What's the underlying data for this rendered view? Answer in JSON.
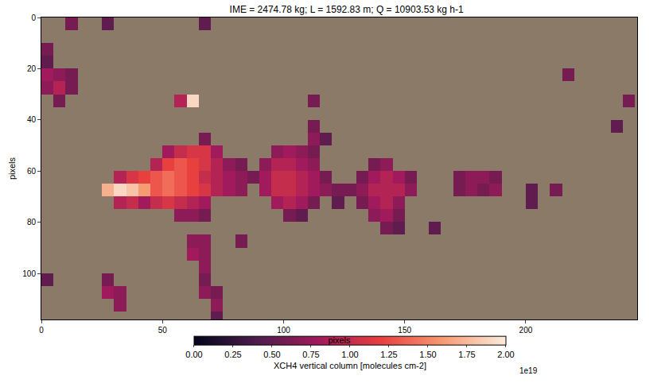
{
  "chart_data": {
    "type": "heatmap",
    "title": "IME = 2474.78 kg; L = 1592.83 m; Q = 10903.53 kg h-1",
    "xlabel": "pixels",
    "ylabel": "pixels",
    "xlim": [
      0,
      246
    ],
    "ylim": [
      118,
      0
    ],
    "xticks": [
      0,
      50,
      100,
      150,
      200
    ],
    "yticks": [
      0,
      20,
      40,
      60,
      80,
      100
    ],
    "grid": false,
    "x": [
      2.5,
      7.5,
      12.5,
      17.5,
      22.5,
      27.5,
      32.5,
      37.5,
      42.5,
      47.5,
      52.5,
      57.5,
      62.5,
      67.5,
      72.5,
      77.5,
      82.5,
      87.5,
      92.5,
      97.5,
      102.5,
      107.5,
      112.5,
      117.5,
      122.5,
      127.5,
      132.5,
      137.5,
      142.5,
      147.5,
      152.5,
      157.5,
      162.5,
      167.5,
      172.5,
      177.5,
      182.5,
      187.5,
      192.5,
      197.5,
      202.5,
      207.5,
      212.5,
      217.5,
      222.5,
      227.5,
      232.5,
      237.5,
      242.5
    ],
    "y": [
      2.5,
      7.5,
      12.5,
      17.5,
      22.5,
      27.5,
      32.5,
      37.5,
      42.5,
      47.5,
      52.5,
      57.5,
      62.5,
      67.5,
      72.5,
      77.5,
      82.5,
      87.5,
      92.5,
      97.5,
      102.5,
      107.5,
      112.5,
      117.5
    ],
    "cells": [
      [
        12.5,
        2.5,
        0.6
      ],
      [
        27.5,
        2.5,
        0.5
      ],
      [
        67.5,
        2.5,
        0.5
      ],
      [
        2.5,
        12.5,
        0.6
      ],
      [
        2.5,
        17.5,
        0.5
      ],
      [
        2.5,
        22.5,
        0.8
      ],
      [
        7.5,
        22.5,
        0.7
      ],
      [
        12.5,
        22.5,
        0.6
      ],
      [
        217.5,
        22.5,
        0.6
      ],
      [
        2.5,
        27.5,
        0.7
      ],
      [
        7.5,
        27.5,
        0.9
      ],
      [
        12.5,
        27.5,
        0.6
      ],
      [
        7.5,
        32.5,
        0.6
      ],
      [
        57.5,
        32.5,
        0.9
      ],
      [
        62.5,
        32.5,
        1.9
      ],
      [
        112.5,
        32.5,
        0.6
      ],
      [
        242.5,
        32.5,
        0.6
      ],
      [
        112.5,
        42.5,
        0.6
      ],
      [
        237.5,
        42.5,
        0.5
      ],
      [
        67.5,
        47.5,
        0.6
      ],
      [
        112.5,
        47.5,
        0.7
      ],
      [
        117.5,
        47.5,
        0.5
      ],
      [
        52.5,
        52.5,
        0.8
      ],
      [
        57.5,
        52.5,
        1.0
      ],
      [
        62.5,
        52.5,
        1.1
      ],
      [
        67.5,
        52.5,
        1.1
      ],
      [
        72.5,
        52.5,
        0.8
      ],
      [
        97.5,
        52.5,
        0.7
      ],
      [
        102.5,
        52.5,
        0.8
      ],
      [
        107.5,
        52.5,
        0.7
      ],
      [
        112.5,
        52.5,
        0.6
      ],
      [
        47.5,
        57.5,
        0.9
      ],
      [
        52.5,
        57.5,
        1.2
      ],
      [
        57.5,
        57.5,
        1.3
      ],
      [
        62.5,
        57.5,
        1.2
      ],
      [
        67.5,
        57.5,
        1.1
      ],
      [
        72.5,
        57.5,
        0.9
      ],
      [
        77.5,
        57.5,
        0.7
      ],
      [
        82.5,
        57.5,
        0.6
      ],
      [
        92.5,
        57.5,
        0.7
      ],
      [
        97.5,
        57.5,
        0.9
      ],
      [
        102.5,
        57.5,
        0.9
      ],
      [
        107.5,
        57.5,
        0.8
      ],
      [
        112.5,
        57.5,
        0.7
      ],
      [
        137.5,
        57.5,
        0.6
      ],
      [
        142.5,
        57.5,
        0.7
      ],
      [
        32.5,
        62.5,
        0.9
      ],
      [
        37.5,
        62.5,
        1.1
      ],
      [
        42.5,
        62.5,
        1.2
      ],
      [
        47.5,
        62.5,
        1.3
      ],
      [
        52.5,
        62.5,
        1.4
      ],
      [
        57.5,
        62.5,
        1.3
      ],
      [
        62.5,
        62.5,
        1.2
      ],
      [
        67.5,
        62.5,
        1.0
      ],
      [
        72.5,
        62.5,
        0.9
      ],
      [
        77.5,
        62.5,
        0.8
      ],
      [
        82.5,
        62.5,
        0.7
      ],
      [
        87.5,
        62.5,
        0.6
      ],
      [
        92.5,
        62.5,
        0.8
      ],
      [
        97.5,
        62.5,
        1.0
      ],
      [
        102.5,
        62.5,
        1.0
      ],
      [
        107.5,
        62.5,
        0.9
      ],
      [
        112.5,
        62.5,
        0.8
      ],
      [
        117.5,
        62.5,
        0.6
      ],
      [
        132.5,
        62.5,
        0.6
      ],
      [
        137.5,
        62.5,
        0.8
      ],
      [
        142.5,
        62.5,
        0.9
      ],
      [
        147.5,
        62.5,
        0.8
      ],
      [
        152.5,
        62.5,
        0.6
      ],
      [
        172.5,
        62.5,
        0.6
      ],
      [
        177.5,
        62.5,
        0.7
      ],
      [
        182.5,
        62.5,
        0.7
      ],
      [
        187.5,
        62.5,
        0.6
      ],
      [
        27.5,
        67.5,
        1.7
      ],
      [
        32.5,
        67.5,
        1.9
      ],
      [
        37.5,
        67.5,
        1.8
      ],
      [
        42.5,
        67.5,
        1.6
      ],
      [
        47.5,
        67.5,
        1.3
      ],
      [
        52.5,
        67.5,
        1.4
      ],
      [
        57.5,
        67.5,
        1.3
      ],
      [
        62.5,
        67.5,
        1.2
      ],
      [
        67.5,
        67.5,
        1.1
      ],
      [
        72.5,
        67.5,
        0.9
      ],
      [
        77.5,
        67.5,
        0.8
      ],
      [
        82.5,
        67.5,
        0.7
      ],
      [
        92.5,
        67.5,
        0.8
      ],
      [
        97.5,
        67.5,
        1.0
      ],
      [
        102.5,
        67.5,
        1.0
      ],
      [
        107.5,
        67.5,
        0.9
      ],
      [
        112.5,
        67.5,
        0.8
      ],
      [
        117.5,
        67.5,
        0.7
      ],
      [
        122.5,
        67.5,
        0.6
      ],
      [
        127.5,
        67.5,
        0.6
      ],
      [
        132.5,
        67.5,
        0.7
      ],
      [
        137.5,
        67.5,
        0.9
      ],
      [
        142.5,
        67.5,
        0.9
      ],
      [
        147.5,
        67.5,
        0.9
      ],
      [
        152.5,
        67.5,
        0.7
      ],
      [
        172.5,
        67.5,
        0.6
      ],
      [
        177.5,
        67.5,
        0.7
      ],
      [
        182.5,
        67.5,
        0.6
      ],
      [
        187.5,
        67.5,
        0.7
      ],
      [
        202.5,
        67.5,
        0.5
      ],
      [
        212.5,
        67.5,
        0.6
      ],
      [
        32.5,
        72.5,
        0.9
      ],
      [
        37.5,
        72.5,
        1.0
      ],
      [
        42.5,
        72.5,
        0.8
      ],
      [
        47.5,
        72.5,
        1.0
      ],
      [
        52.5,
        72.5,
        1.1
      ],
      [
        57.5,
        72.5,
        1.0
      ],
      [
        62.5,
        72.5,
        0.9
      ],
      [
        67.5,
        72.5,
        0.8
      ],
      [
        97.5,
        72.5,
        0.8
      ],
      [
        102.5,
        72.5,
        0.9
      ],
      [
        107.5,
        72.5,
        0.8
      ],
      [
        112.5,
        72.5,
        0.6
      ],
      [
        122.5,
        72.5,
        0.5
      ],
      [
        132.5,
        72.5,
        0.6
      ],
      [
        137.5,
        72.5,
        0.8
      ],
      [
        142.5,
        72.5,
        0.9
      ],
      [
        147.5,
        72.5,
        0.7
      ],
      [
        202.5,
        72.5,
        0.5
      ],
      [
        57.5,
        77.5,
        0.7
      ],
      [
        62.5,
        77.5,
        0.7
      ],
      [
        67.5,
        77.5,
        0.6
      ],
      [
        102.5,
        77.5,
        0.6
      ],
      [
        107.5,
        77.5,
        0.5
      ],
      [
        137.5,
        77.5,
        0.7
      ],
      [
        142.5,
        77.5,
        0.8
      ],
      [
        147.5,
        77.5,
        0.6
      ],
      [
        142.5,
        82.5,
        0.6
      ],
      [
        147.5,
        82.5,
        0.5
      ],
      [
        162.5,
        82.5,
        0.5
      ],
      [
        62.5,
        87.5,
        0.7
      ],
      [
        67.5,
        87.5,
        0.7
      ],
      [
        82.5,
        87.5,
        0.6
      ],
      [
        62.5,
        92.5,
        0.8
      ],
      [
        67.5,
        92.5,
        0.7
      ],
      [
        67.5,
        97.5,
        0.7
      ],
      [
        2.5,
        102.5,
        0.5
      ],
      [
        27.5,
        102.5,
        0.6
      ],
      [
        67.5,
        102.5,
        0.6
      ],
      [
        27.5,
        107.5,
        0.8
      ],
      [
        32.5,
        107.5,
        0.7
      ],
      [
        67.5,
        107.5,
        0.7
      ],
      [
        72.5,
        107.5,
        0.6
      ],
      [
        32.5,
        112.5,
        0.7
      ],
      [
        72.5,
        112.5,
        0.7
      ],
      [
        72.5,
        117.5,
        0.5
      ]
    ],
    "colorbar": {
      "title": "XCH4 vertical column [molecules cm-2]",
      "exponent_label": "1e19",
      "range": [
        0,
        2
      ],
      "ticks": [
        {
          "value": 0,
          "label": "0.00"
        },
        {
          "value": 0.25,
          "label": "0.25"
        },
        {
          "value": 0.5,
          "label": "0.50"
        },
        {
          "value": 0.75,
          "label": "0.75"
        },
        {
          "value": 1,
          "label": "1.00"
        },
        {
          "value": 1.25,
          "label": "1.25"
        },
        {
          "value": 1.5,
          "label": "1.50"
        },
        {
          "value": 1.75,
          "label": "1.75"
        },
        {
          "value": 2,
          "label": "2.00"
        }
      ]
    }
  }
}
